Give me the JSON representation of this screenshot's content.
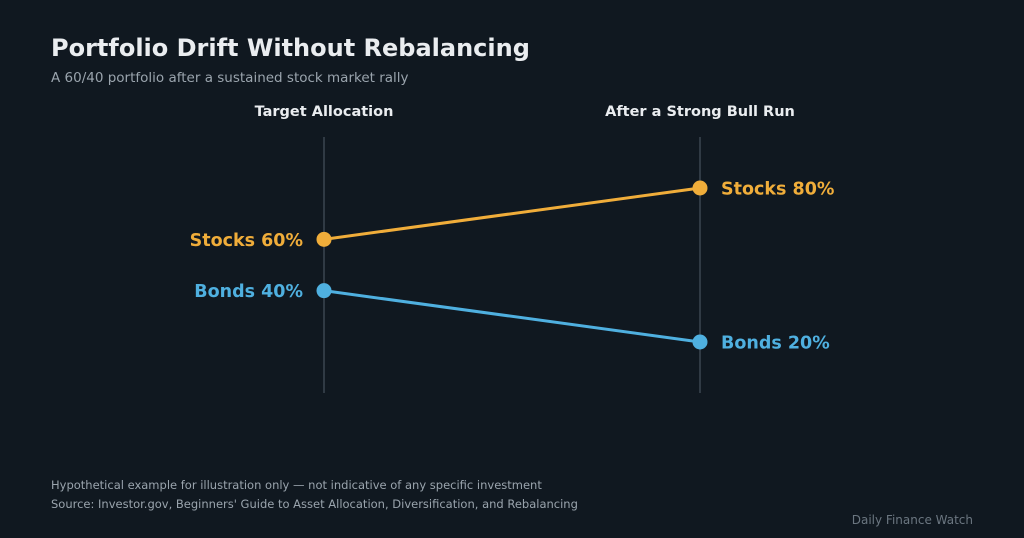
{
  "title": "Portfolio Drift Without Rebalancing",
  "subtitle": "A 60/40 portfolio after a sustained stock market rally",
  "footnote": "Hypothetical example for illustration only — not indicative of any specific investment",
  "source": "Source: Investor.gov, Beginners' Guide to Asset Allocation, Diversification, and Rebalancing",
  "brand": "Daily Finance Watch",
  "colors": {
    "background": "#101820",
    "stocks": "#f0ad3a",
    "bonds": "#4fb0e0",
    "axis": "#3a4650"
  },
  "chart_data": {
    "type": "slope",
    "categories": [
      "Target Allocation",
      "After a Strong Bull Run"
    ],
    "unit": "%",
    "grid": false,
    "series": [
      {
        "name": "Stocks",
        "values": [
          60,
          80
        ],
        "labels": [
          "Stocks 60%",
          "Stocks 80%"
        ]
      },
      {
        "name": "Bonds",
        "values": [
          40,
          20
        ],
        "labels": [
          "Bonds 40%",
          "Bonds 20%"
        ]
      }
    ]
  }
}
